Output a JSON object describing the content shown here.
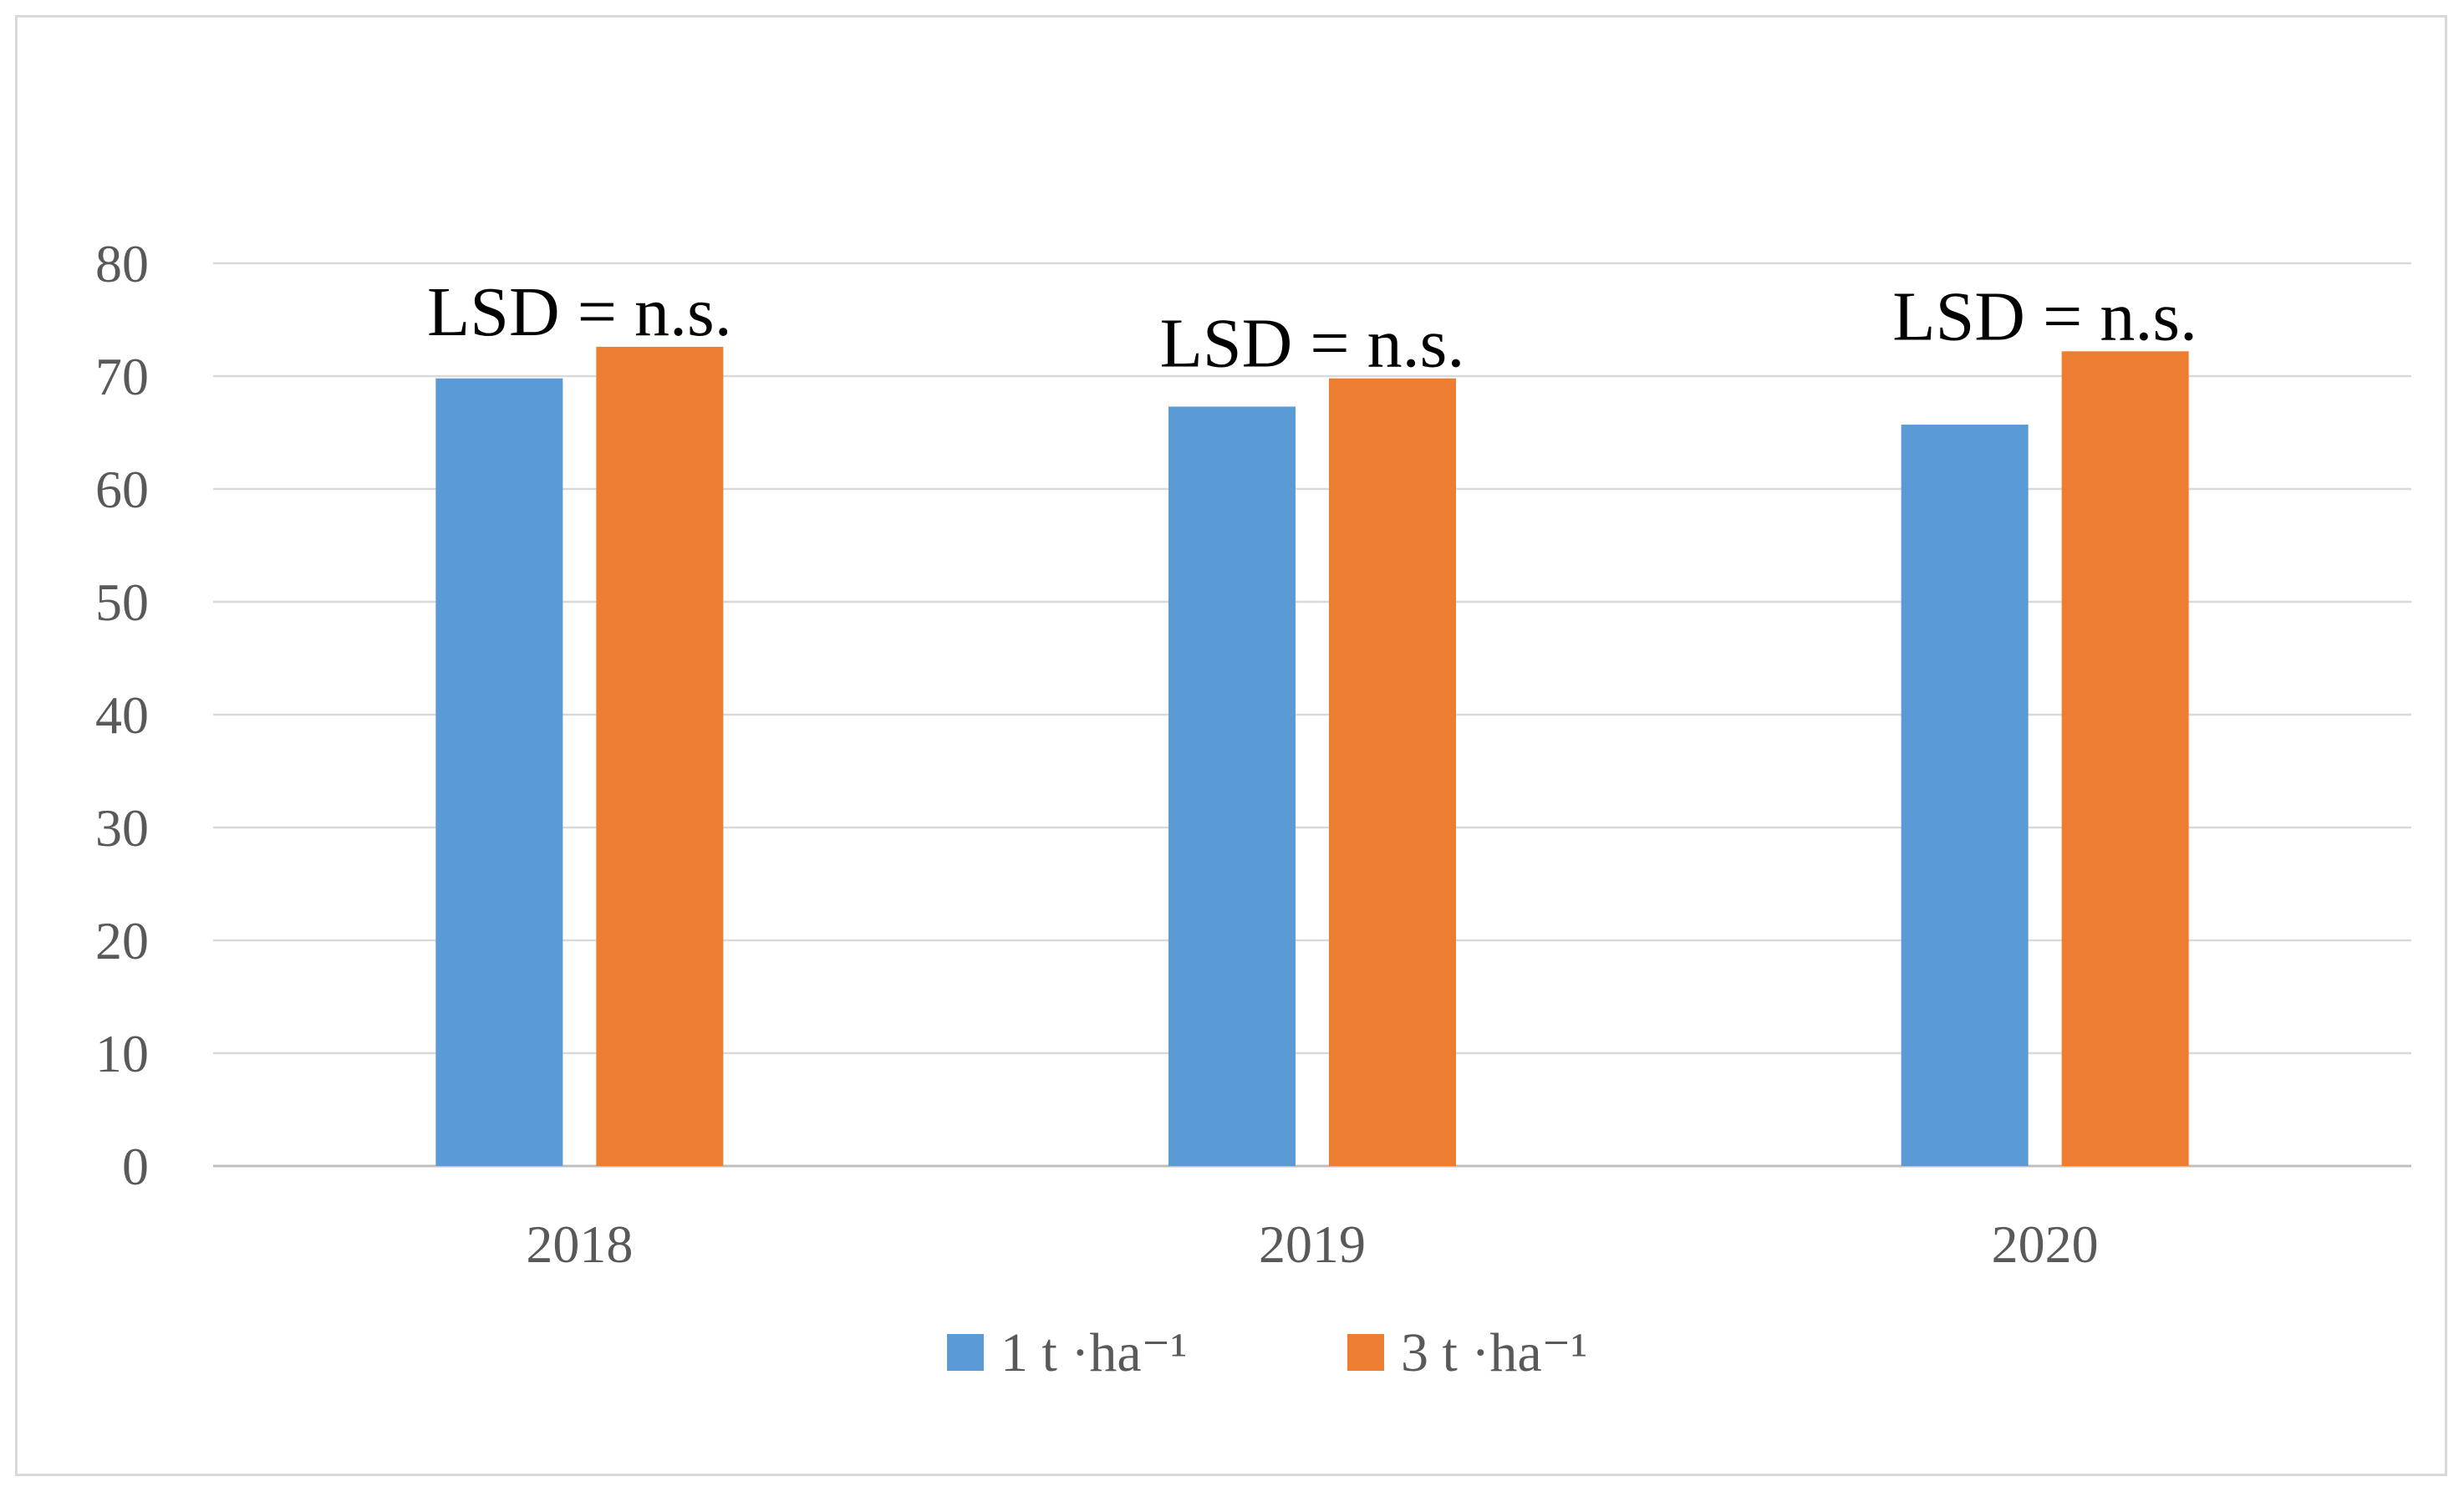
{
  "chart_data": {
    "type": "bar",
    "title": "",
    "xlabel": "",
    "ylabel": "",
    "categories": [
      "2018",
      "2019",
      "2020"
    ],
    "series": [
      {
        "name": "1 t ·ha⁻¹",
        "values": [
          69.8,
          67.3,
          65.7
        ],
        "color": "#5b9bd5"
      },
      {
        "name": "3 t ·ha⁻¹",
        "values": [
          72.6,
          69.8,
          72.2
        ],
        "color": "#ed7d31"
      }
    ],
    "ylim": [
      0,
      80
    ],
    "yticks": [
      "0",
      "10",
      "20",
      "30",
      "40",
      "50",
      "60",
      "70",
      "80"
    ],
    "grid": true,
    "legend_position": "bottom",
    "annotations": [
      "LSD = n.s.",
      "LSD = n.s.",
      "LSD = n.s."
    ],
    "colors": {
      "grid": "#d9d9d9",
      "axis": "#bfbfbf",
      "tick_text": "#595959",
      "annotation_text": "#000000"
    }
  }
}
